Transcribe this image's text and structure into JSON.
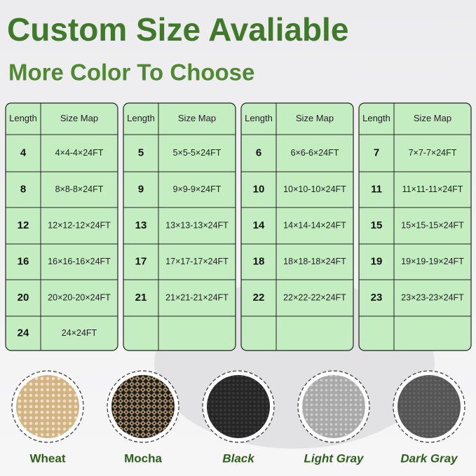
{
  "title": "Custom Size Avaliable",
  "subtitle": "More Color To Choose",
  "tables": [
    {
      "header": [
        "Length",
        "Size Map"
      ],
      "rows": [
        [
          "4",
          "4×4-4×24FT"
        ],
        [
          "8",
          "8×8-8×24FT"
        ],
        [
          "12",
          "12×12-12×24FT"
        ],
        [
          "16",
          "16×16-16×24FT"
        ],
        [
          "20",
          "20×20-20×24FT"
        ],
        [
          "24",
          "24×24FT"
        ]
      ]
    },
    {
      "header": [
        "Length",
        "Size Map"
      ],
      "rows": [
        [
          "5",
          "5×5-5×24FT"
        ],
        [
          "9",
          "9×9-9×24FT"
        ],
        [
          "13",
          "13×13-13×24FT"
        ],
        [
          "17",
          "17×17-17×24FT"
        ],
        [
          "21",
          "21×21-21×24FT"
        ]
      ]
    },
    {
      "header": [
        "Length",
        "Size Map"
      ],
      "rows": [
        [
          "6",
          "6×6-6×24FT"
        ],
        [
          "10",
          "10×10-10×24FT"
        ],
        [
          "14",
          "14×14-14×24FT"
        ],
        [
          "18",
          "18×18-18×24FT"
        ],
        [
          "22",
          "22×22-22×24FT"
        ]
      ]
    },
    {
      "header": [
        "Length",
        "Size Map"
      ],
      "rows": [
        [
          "7",
          "7×7-7×24FT"
        ],
        [
          "11",
          "11×11-11×24FT"
        ],
        [
          "15",
          "15×15-15×24FT"
        ],
        [
          "19",
          "19×19-19×24FT"
        ],
        [
          "23",
          "23×23-23×24FT"
        ]
      ]
    }
  ],
  "colors": [
    {
      "label": "Wheat"
    },
    {
      "label": "Mocha"
    },
    {
      "label": "Black"
    },
    {
      "label": "Light Gray"
    },
    {
      "label": "Dark Gray"
    }
  ]
}
